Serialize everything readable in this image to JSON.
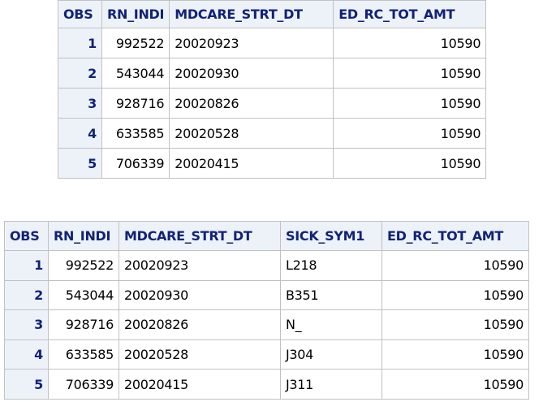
{
  "table1": {
    "columns": [
      "OBS",
      "RN_INDI",
      "MDCARE_STRT_DT",
      "ED_RC_TOT_AMT"
    ],
    "rows": [
      [
        "1",
        "992522",
        "20020923",
        "10590"
      ],
      [
        "2",
        "543044",
        "20020930",
        "10590"
      ],
      [
        "3",
        "928716",
        "20020826",
        "10590"
      ],
      [
        "4",
        "633585",
        "20020528",
        "10590"
      ],
      [
        "5",
        "706339",
        "20020415",
        "10590"
      ]
    ]
  },
  "table2": {
    "columns": [
      "OBS",
      "RN_INDI",
      "MDCARE_STRT_DT",
      "SICK_SYM1",
      "ED_RC_TOT_AMT"
    ],
    "rows": [
      [
        "1",
        "992522",
        "20020923",
        "L218",
        "10590"
      ],
      [
        "2",
        "543044",
        "20020930",
        "B351",
        "10590"
      ],
      [
        "3",
        "928716",
        "20020826",
        "N_",
        "10590"
      ],
      [
        "4",
        "633585",
        "20020528",
        "J304",
        "10590"
      ],
      [
        "5",
        "706339",
        "20020415",
        "J311",
        "10590"
      ]
    ]
  },
  "colors": {
    "header_bg": "#edf2f9",
    "header_text": "#112277",
    "grid": "#c1c1c1"
  }
}
